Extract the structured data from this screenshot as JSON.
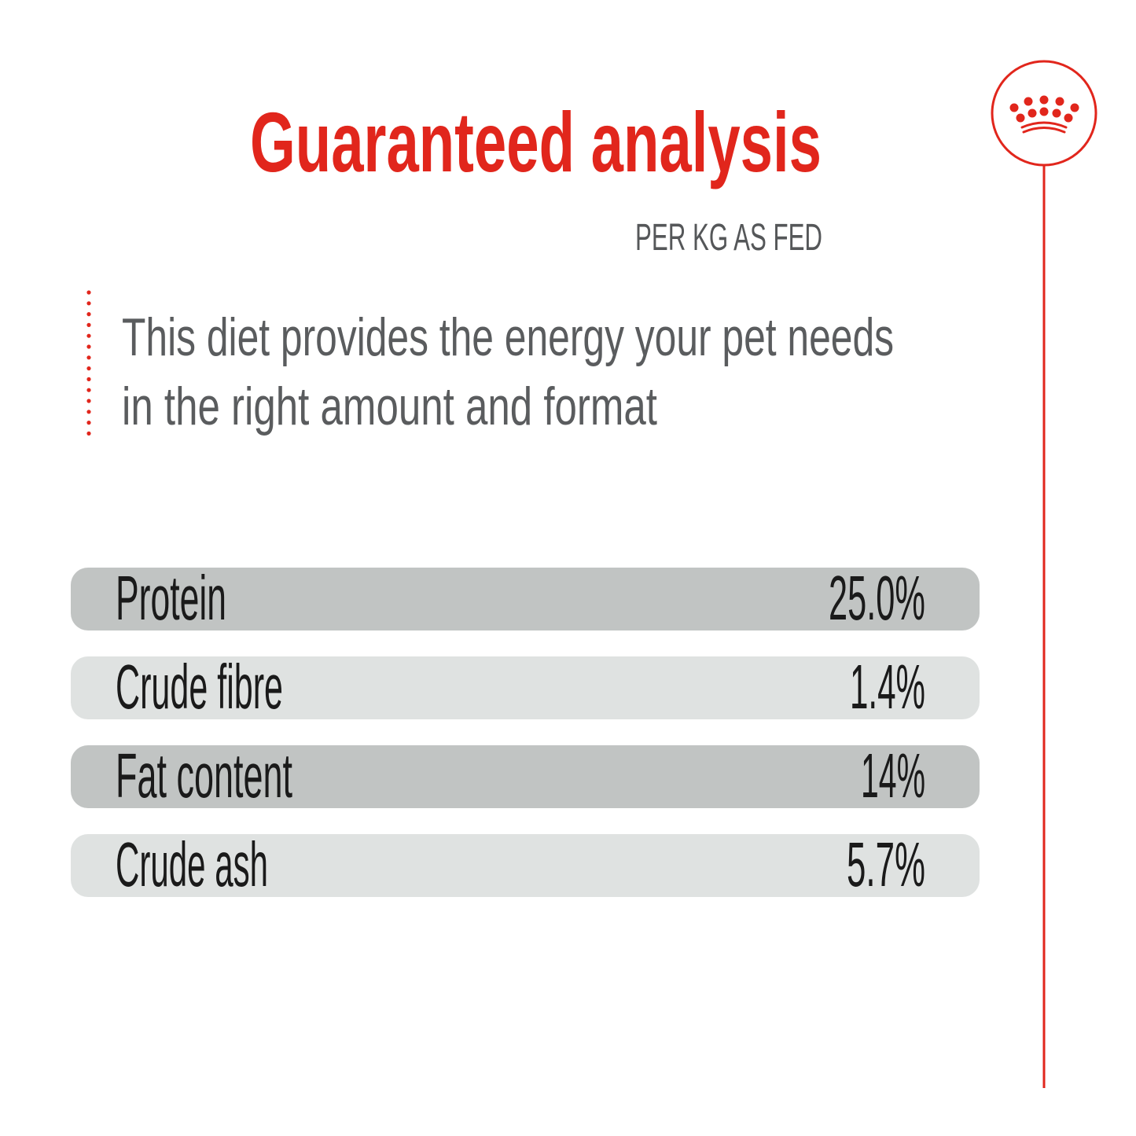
{
  "title": "Guaranteed analysis",
  "subtitle": "PER KG AS FED",
  "description": {
    "line1": "This diet provides the energy your pet needs",
    "line2": "in the right amount and format"
  },
  "nutrients": [
    {
      "label": "Protein",
      "value": "25.0%"
    },
    {
      "label": "Crude fibre",
      "value": "1.4%"
    },
    {
      "label": "Fat content",
      "value": "14%"
    },
    {
      "label": "Crude ash",
      "value": "5.7%"
    }
  ],
  "logo": {
    "icon": "crown-icon"
  },
  "colors": {
    "brand_red": "#e1261c",
    "row_dark": "#c1c4c3",
    "row_light": "#dfe2e1",
    "text_dark": "#1a1a1a",
    "text_gray": "#5a5c5e"
  }
}
